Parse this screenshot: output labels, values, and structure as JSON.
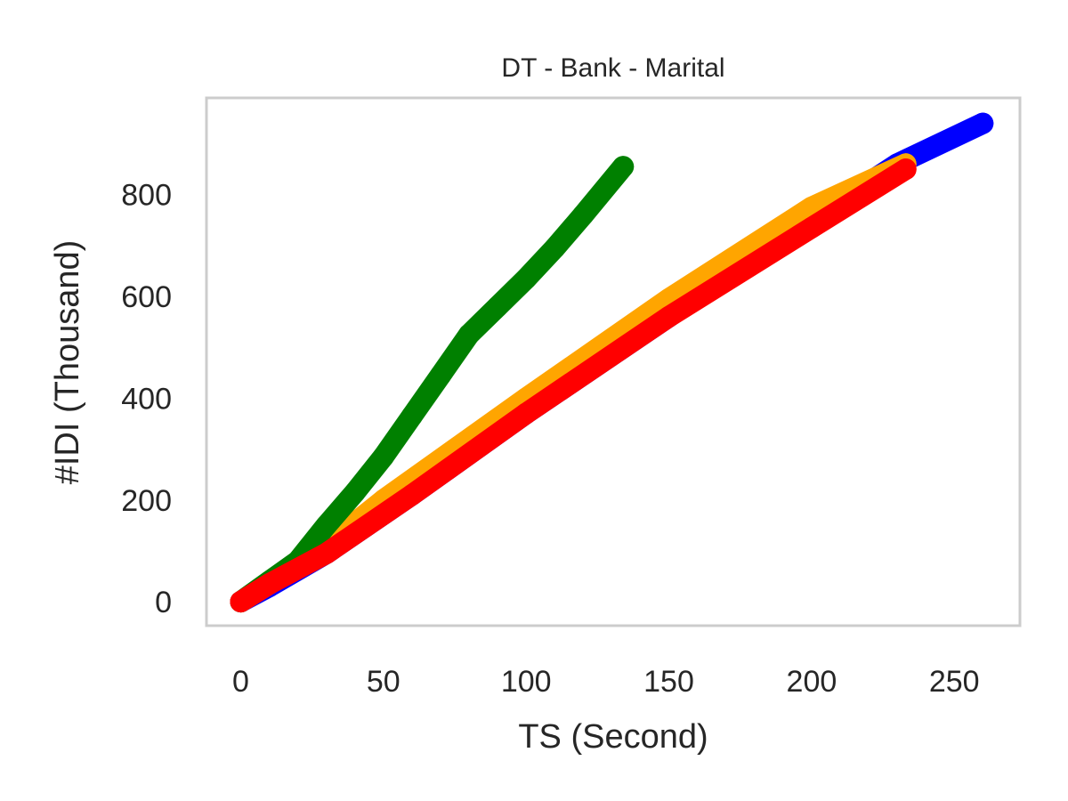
{
  "chart_data": {
    "type": "line",
    "title": "DT - Bank - Marital",
    "xlabel": "TS (Second)",
    "ylabel": "#IDI (Thousand)",
    "xlim": [
      -12,
      273
    ],
    "ylim": [
      -47,
      990
    ],
    "x_ticks": [
      0,
      50,
      100,
      150,
      200,
      250
    ],
    "y_ticks": [
      0,
      200,
      400,
      600,
      800
    ],
    "grid": false,
    "legend": "none",
    "series": [
      {
        "color": "#0000ff",
        "x": [
          0,
          10,
          30,
          60,
          100,
          150,
          200,
          230,
          260
        ],
        "y": [
          0,
          30,
          95,
          210,
          370,
          560,
          750,
          860,
          940
        ]
      },
      {
        "color": "#ffa500",
        "x": [
          0,
          10,
          30,
          50,
          100,
          150,
          200,
          233
        ],
        "y": [
          0,
          35,
          110,
          200,
          400,
          595,
          775,
          860
        ]
      },
      {
        "color": "#008000",
        "x": [
          0,
          10,
          20,
          30,
          40,
          50,
          60,
          70,
          80,
          90,
          100,
          110,
          120,
          134
        ],
        "y": [
          0,
          40,
          80,
          150,
          215,
          285,
          365,
          445,
          525,
          580,
          635,
          695,
          760,
          855
        ]
      },
      {
        "color": "#ff0000",
        "x": [
          0,
          10,
          30,
          60,
          100,
          150,
          200,
          233
        ],
        "y": [
          0,
          35,
          95,
          210,
          370,
          560,
          735,
          850
        ]
      }
    ]
  }
}
